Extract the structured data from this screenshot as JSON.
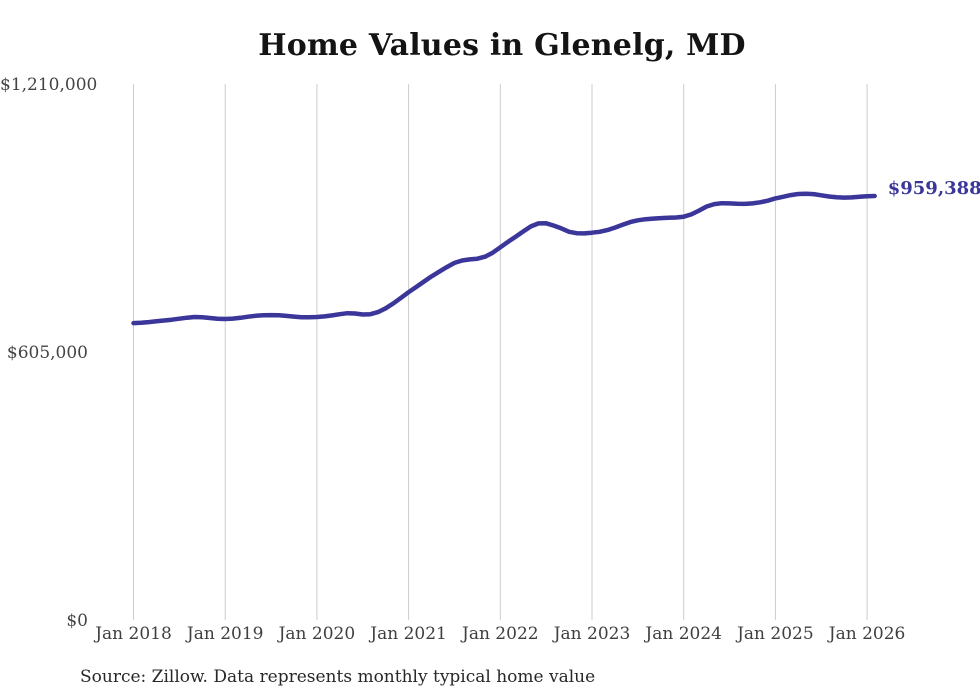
{
  "chart": {
    "title": "Home Values in Glenelg, MD",
    "end_label": "$959,388",
    "source": "Source: Zillow. Data represents monthly typical home value"
  },
  "chart_data": {
    "type": "line",
    "title": "Home Values in Glenelg, MD",
    "xlabel": "",
    "ylabel": "",
    "ylim": [
      0,
      1210000
    ],
    "grid": "vertical-only",
    "legend": "none",
    "line_color": "#3b3699",
    "gridline_color": "#cccccc",
    "axis_label_color": "#444444",
    "end_annotation": "$959,388",
    "end_annotation_value": 959388,
    "source": "Source: Zillow. Data represents monthly typical home value",
    "y_ticks": [
      {
        "value": 0,
        "label": "$0"
      },
      {
        "value": 605000,
        "label": "$605,000"
      },
      {
        "value": 1210000,
        "label": "$1,210,000"
      }
    ],
    "x_tick_labels": [
      "Jan 2018",
      "Jan 2019",
      "Jan 2020",
      "Jan 2021",
      "Jan 2022",
      "Jan 2023",
      "Jan 2024",
      "Jan 2025",
      "Jan 2026"
    ],
    "series_name": "Typical home value (monthly)",
    "x": [
      "2018-01",
      "2018-02",
      "2018-03",
      "2018-04",
      "2018-05",
      "2018-06",
      "2018-07",
      "2018-08",
      "2018-09",
      "2018-10",
      "2018-11",
      "2018-12",
      "2019-01",
      "2019-02",
      "2019-03",
      "2019-04",
      "2019-05",
      "2019-06",
      "2019-07",
      "2019-08",
      "2019-09",
      "2019-10",
      "2019-11",
      "2019-12",
      "2020-01",
      "2020-02",
      "2020-03",
      "2020-04",
      "2020-05",
      "2020-06",
      "2020-07",
      "2020-08",
      "2020-09",
      "2020-10",
      "2020-11",
      "2020-12",
      "2021-01",
      "2021-02",
      "2021-03",
      "2021-04",
      "2021-05",
      "2021-06",
      "2021-07",
      "2021-08",
      "2021-09",
      "2021-10",
      "2021-11",
      "2021-12",
      "2022-01",
      "2022-02",
      "2022-03",
      "2022-04",
      "2022-05",
      "2022-06",
      "2022-07",
      "2022-08",
      "2022-09",
      "2022-10",
      "2022-11",
      "2022-12",
      "2023-01",
      "2023-02",
      "2023-03",
      "2023-04",
      "2023-05",
      "2023-06",
      "2023-07",
      "2023-08",
      "2023-09",
      "2023-10",
      "2023-11",
      "2023-12",
      "2024-01",
      "2024-02",
      "2024-03",
      "2024-04",
      "2024-05",
      "2024-06",
      "2024-07",
      "2024-08",
      "2024-09",
      "2024-10",
      "2024-11",
      "2024-12",
      "2025-01",
      "2025-02",
      "2025-03",
      "2025-04",
      "2025-05",
      "2025-06",
      "2025-07",
      "2025-08",
      "2025-09",
      "2025-10",
      "2025-11",
      "2025-12",
      "2026-01",
      "2026-02"
    ],
    "values": [
      672500,
      673400,
      674800,
      676500,
      678300,
      680200,
      682400,
      684800,
      686200,
      685600,
      683900,
      682300,
      681800,
      682600,
      684500,
      686900,
      688900,
      690200,
      690600,
      690100,
      688800,
      687200,
      685900,
      685600,
      686200,
      687600,
      689800,
      692600,
      694900,
      694100,
      691800,
      692700,
      697300,
      705800,
      716900,
      729600,
      742200,
      754100,
      766200,
      777900,
      788600,
      798900,
      808300,
      813900,
      816200,
      817800,
      822400,
      831500,
      843700,
      855800,
      867500,
      879300,
      890800,
      897600,
      897900,
      892700,
      886200,
      878600,
      875500,
      874900,
      876500,
      878500,
      882500,
      888000,
      894500,
      900500,
      904500,
      907000,
      908500,
      909500,
      910100,
      910800,
      912600,
      917800,
      926400,
      935700,
      941200,
      943100,
      942800,
      941900,
      941600,
      942700,
      945300,
      948900,
      954000,
      957600,
      961400,
      963900,
      964700,
      963600,
      961000,
      958300,
      956400,
      955700,
      956300,
      957900,
      958900,
      959388
    ]
  }
}
